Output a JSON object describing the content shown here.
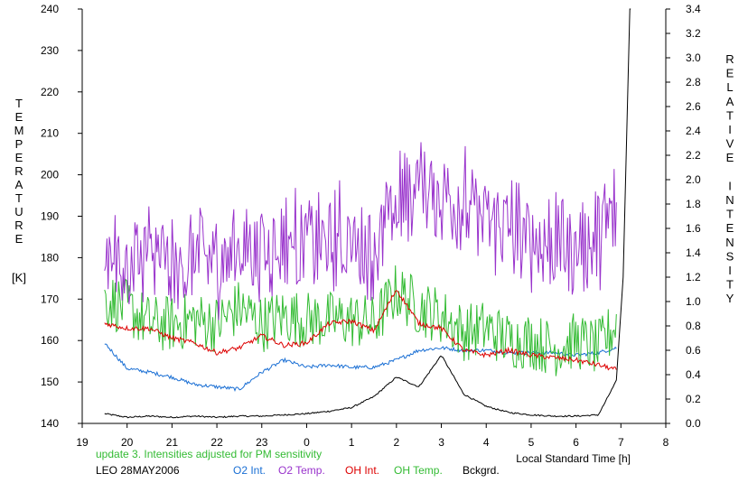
{
  "chart_data": {
    "type": "line",
    "title": "",
    "xlabel": "Local Standard Time [h]",
    "ylabel_left": "TEMPERATURE [K]",
    "ylabel_right": "RELATIVE INTENSITY",
    "ylabel_left_letters": [
      "T",
      "E",
      "M",
      "P",
      "E",
      "R",
      "A",
      "T",
      "U",
      "R",
      "E"
    ],
    "ylabel_left_unit": "[K]",
    "ylabel_right_letters": [
      "R",
      "E",
      "L",
      "A",
      "T",
      "I",
      "V",
      "E",
      "",
      "I",
      "N",
      "T",
      "E",
      "N",
      "S",
      "I",
      "T",
      "Y"
    ],
    "x_range": [
      19,
      8
    ],
    "x_ticks": [
      "19",
      "20",
      "21",
      "22",
      "23",
      "0",
      "1",
      "2",
      "3",
      "4",
      "5",
      "6",
      "7",
      "8"
    ],
    "y_left_range": [
      140,
      240
    ],
    "y_left_ticks": [
      "140",
      "150",
      "160",
      "170",
      "180",
      "190",
      "200",
      "210",
      "220",
      "230",
      "240"
    ],
    "y_right_range": [
      0.0,
      3.4
    ],
    "y_right_ticks": [
      "0.0",
      "0.2",
      "0.4",
      "0.6",
      "0.8",
      "1.0",
      "1.2",
      "1.4",
      "1.6",
      "1.8",
      "2.0",
      "2.2",
      "2.4",
      "2.6",
      "2.8",
      "3.0",
      "3.2",
      "3.4"
    ],
    "grid": false,
    "x_hours": [
      19.5,
      20.0,
      20.5,
      21.0,
      21.5,
      22.0,
      22.5,
      23.0,
      23.5,
      24.0,
      24.5,
      25.0,
      25.5,
      26.0,
      26.5,
      27.0,
      27.5,
      28.0,
      28.5,
      29.0,
      29.5,
      30.0,
      30.5,
      30.9
    ],
    "series": [
      {
        "name": "O2 Int.",
        "color": "#1a6fd4",
        "axis": "right",
        "values": [
          0.66,
          0.45,
          0.42,
          0.38,
          0.32,
          0.3,
          0.28,
          0.42,
          0.52,
          0.46,
          0.48,
          0.46,
          0.46,
          0.52,
          0.6,
          0.62,
          0.6,
          0.6,
          0.58,
          0.58,
          0.58,
          0.56,
          0.58,
          0.62
        ]
      },
      {
        "name": "O2 Temp.",
        "color": "#9933cc",
        "axis": "left",
        "values": [
          182,
          178,
          180,
          176,
          180,
          178,
          182,
          180,
          184,
          182,
          182,
          184,
          180,
          192,
          196,
          195,
          192,
          188,
          186,
          182,
          183,
          182,
          184,
          190
        ]
      },
      {
        "name": "OH Int.",
        "color": "#dd0000",
        "axis": "right",
        "values": [
          0.82,
          0.78,
          0.78,
          0.7,
          0.66,
          0.58,
          0.62,
          0.72,
          0.64,
          0.66,
          0.82,
          0.84,
          0.76,
          1.1,
          0.82,
          0.78,
          0.6,
          0.56,
          0.6,
          0.56,
          0.54,
          0.52,
          0.48,
          0.44
        ]
      },
      {
        "name": "OH Temp.",
        "color": "#33bb33",
        "axis": "left",
        "values": [
          170,
          168,
          164,
          164,
          165,
          164,
          168,
          164,
          166,
          165,
          165,
          165,
          164,
          172,
          168,
          166,
          162,
          163,
          160,
          160,
          158,
          160,
          158,
          164
        ]
      },
      {
        "name": "Bckgrd.",
        "color": "#000000",
        "axis": "right",
        "values": [
          0.08,
          0.05,
          0.06,
          0.05,
          0.06,
          0.05,
          0.06,
          0.06,
          0.07,
          0.08,
          0.1,
          0.13,
          0.22,
          0.38,
          0.3,
          0.56,
          0.24,
          0.14,
          0.09,
          0.07,
          0.06,
          0.06,
          0.07,
          0.35
        ]
      }
    ]
  },
  "footer": {
    "note": "update 3. Intensities adjusted for PM sensitivity",
    "site_date": "LEO 28MAY2006",
    "legend": [
      "O2 Int.",
      "O2 Temp.",
      "OH Int.",
      "OH Temp.",
      "Bckgrd."
    ]
  },
  "colors": {
    "note": "#33bb33",
    "o2_int": "#1a6fd4",
    "o2_temp": "#9933cc",
    "oh_int": "#dd0000",
    "oh_temp": "#33bb33",
    "bckgrd": "#000000"
  }
}
